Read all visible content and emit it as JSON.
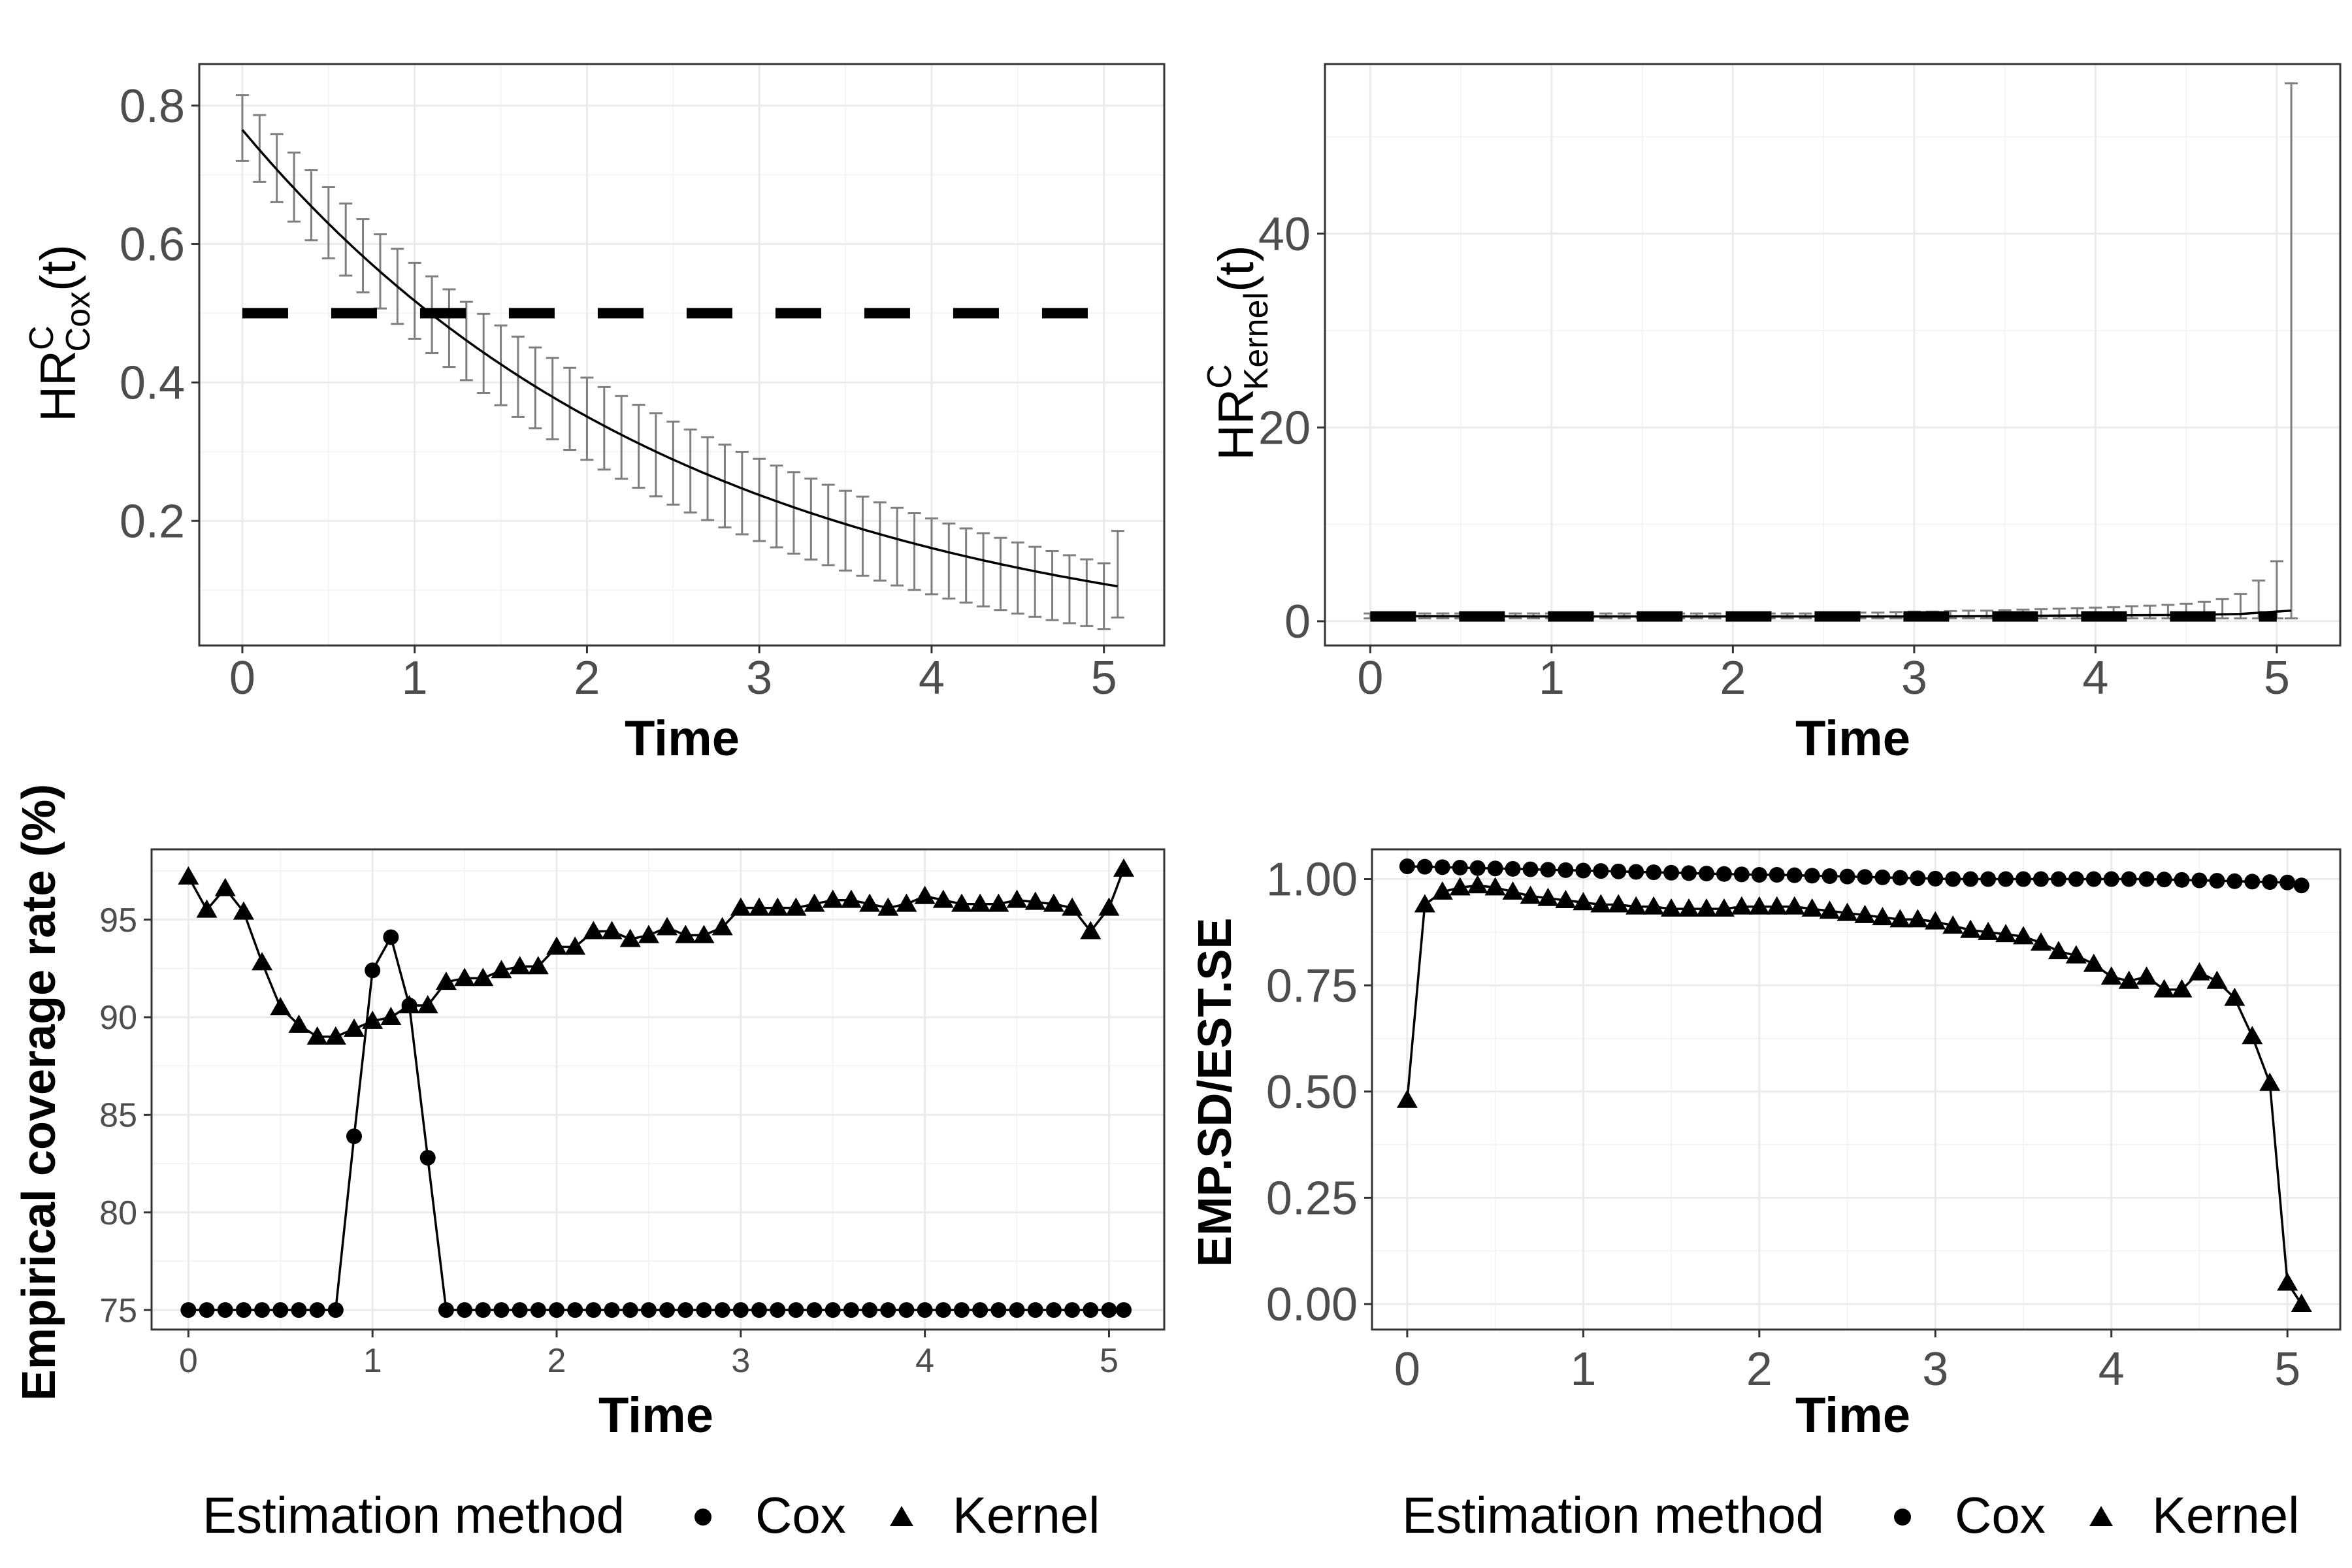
{
  "colors": {
    "grid_major": "#ebebeb",
    "grid_minor": "#f4f4f4",
    "border": "#333333",
    "tick_text": "#4d4d4d",
    "errorbar": "#7f7f7f",
    "line": "#000000"
  },
  "chart_data": [
    {
      "id": "hr_cox",
      "type": "line",
      "ylabel": {
        "base": "HR",
        "sup": "C",
        "sub": "Cox",
        "suffix": "(t)"
      },
      "xlabel": "Time",
      "xlim": [
        -0.25,
        5.35
      ],
      "ylim": [
        0.02,
        0.86
      ],
      "xticks": [
        0,
        1,
        2,
        3,
        4,
        5
      ],
      "yticks": [
        0.2,
        0.4,
        0.6,
        0.8
      ],
      "ytick_labels": [
        "0.2",
        "0.4",
        "0.6",
        "0.8"
      ],
      "reference_line": {
        "value": 0.5,
        "style": "dashed"
      },
      "estimate": {
        "formula": "0.765*exp(-0.39*t)",
        "x_range": [
          0,
          5.08
        ]
      },
      "errorbars": {
        "x_step": 0.1,
        "lower_formula": "est-0.045-0.02*t/5-0.01*sin(pi*t/5)",
        "upper_formula": "est+0.05-0.02*t/5+0.015*sin(pi*t/5)"
      }
    },
    {
      "id": "hr_kernel",
      "type": "line",
      "ylabel": {
        "base": "HR",
        "sup": "C",
        "sub": "Kernel",
        "suffix": "(t)"
      },
      "xlabel": "Time",
      "xlim": [
        -0.25,
        5.35
      ],
      "ylim": [
        -2.5,
        57.5
      ],
      "xticks": [
        0,
        1,
        2,
        3,
        4,
        5
      ],
      "yticks": [
        0,
        20,
        40
      ],
      "ytick_labels": [
        "0",
        "20",
        "40"
      ],
      "reference_line": {
        "value": 0.5,
        "style": "dashed"
      },
      "estimate": {
        "x": [
          0,
          1,
          2,
          3,
          3.5,
          4,
          4.5,
          4.8,
          5.0,
          5.08
        ],
        "y": [
          0.55,
          0.5,
          0.5,
          0.5,
          0.55,
          0.6,
          0.65,
          0.75,
          1.0,
          1.1
        ]
      },
      "errorbars": {
        "x": [
          0.0,
          0.1,
          0.2,
          0.3,
          0.4,
          0.5,
          0.6,
          0.7,
          0.8,
          0.9,
          1.0,
          1.1,
          1.2,
          1.3,
          1.4,
          1.5,
          1.6,
          1.7,
          1.8,
          1.9,
          2.0,
          2.1,
          2.2,
          2.3,
          2.4,
          2.5,
          2.6,
          2.7,
          2.8,
          2.9,
          3.0,
          3.1,
          3.2,
          3.3,
          3.4,
          3.5,
          3.6,
          3.7,
          3.8,
          3.9,
          4.0,
          4.1,
          4.2,
          4.3,
          4.4,
          4.5,
          4.6,
          4.7,
          4.8,
          4.9,
          5.0,
          5.08
        ],
        "upper": [
          0.8,
          0.8,
          0.8,
          0.8,
          0.8,
          0.8,
          0.8,
          0.8,
          0.8,
          0.8,
          0.8,
          0.8,
          0.8,
          0.8,
          0.8,
          0.8,
          0.8,
          0.8,
          0.8,
          0.8,
          0.8,
          0.8,
          0.8,
          0.8,
          0.8,
          0.85,
          0.85,
          0.9,
          0.9,
          0.95,
          1.0,
          1.0,
          1.05,
          1.1,
          1.1,
          1.15,
          1.2,
          1.25,
          1.3,
          1.35,
          1.4,
          1.45,
          1.55,
          1.6,
          1.7,
          1.8,
          2.0,
          2.3,
          2.8,
          4.2,
          6.2,
          55.5
        ],
        "lower": [
          0.3,
          0.3,
          0.3,
          0.3,
          0.3,
          0.3,
          0.3,
          0.3,
          0.3,
          0.3,
          0.3,
          0.3,
          0.3,
          0.3,
          0.3,
          0.3,
          0.3,
          0.3,
          0.3,
          0.3,
          0.3,
          0.3,
          0.3,
          0.3,
          0.3,
          0.3,
          0.3,
          0.3,
          0.3,
          0.3,
          0.3,
          0.3,
          0.3,
          0.3,
          0.3,
          0.3,
          0.3,
          0.3,
          0.3,
          0.3,
          0.3,
          0.3,
          0.3,
          0.3,
          0.3,
          0.3,
          0.3,
          0.3,
          0.3,
          0.3,
          0.3,
          0.3
        ]
      }
    },
    {
      "id": "coverage",
      "type": "line",
      "ylabel": "Empirical coverage rate (%)",
      "xlabel": "Time",
      "xlim": [
        -0.2,
        5.3
      ],
      "ylim": [
        74.0,
        98.6
      ],
      "xticks": [
        0,
        1,
        2,
        3,
        4,
        5
      ],
      "yticks": [
        75,
        80,
        85,
        90,
        95
      ],
      "ytick_labels": [
        "75",
        "80",
        "85",
        "90",
        "95"
      ],
      "legend": {
        "title": "Estimation method",
        "entries": [
          "Cox",
          "Kernel"
        ],
        "position": "bottom"
      },
      "series": [
        {
          "name": "Cox",
          "marker": "circle",
          "x": [
            0.0,
            0.1,
            0.2,
            0.3,
            0.4,
            0.5,
            0.6,
            0.7,
            0.8,
            0.9,
            1.0,
            1.1,
            1.2,
            1.3,
            1.4,
            1.5,
            1.6,
            1.7,
            1.8,
            1.9,
            2.0,
            2.1,
            2.2,
            2.3,
            2.4,
            2.5,
            2.6,
            2.7,
            2.8,
            2.9,
            3.0,
            3.1,
            3.2,
            3.3,
            3.4,
            3.5,
            3.6,
            3.7,
            3.8,
            3.9,
            4.0,
            4.1,
            4.2,
            4.3,
            4.4,
            4.5,
            4.6,
            4.7,
            4.8,
            4.9,
            5.0,
            5.08
          ],
          "y": [
            75.0,
            75.0,
            75.0,
            75.0,
            75.0,
            75.0,
            75.0,
            75.0,
            75.0,
            83.9,
            92.4,
            94.1,
            90.6,
            82.8,
            75.0,
            75.0,
            75.0,
            75.0,
            75.0,
            75.0,
            75.0,
            75.0,
            75.0,
            75.0,
            75.0,
            75.0,
            75.0,
            75.0,
            75.0,
            75.0,
            75.0,
            75.0,
            75.0,
            75.0,
            75.0,
            75.0,
            75.0,
            75.0,
            75.0,
            75.0,
            75.0,
            75.0,
            75.0,
            75.0,
            75.0,
            75.0,
            75.0,
            75.0,
            75.0,
            75.0,
            75.0,
            75.0
          ]
        },
        {
          "name": "Kernel",
          "marker": "triangle",
          "x": [
            0.0,
            0.1,
            0.2,
            0.3,
            0.4,
            0.5,
            0.6,
            0.7,
            0.8,
            0.9,
            1.0,
            1.1,
            1.2,
            1.3,
            1.4,
            1.5,
            1.6,
            1.7,
            1.8,
            1.9,
            2.0,
            2.1,
            2.2,
            2.3,
            2.4,
            2.5,
            2.6,
            2.7,
            2.8,
            2.9,
            3.0,
            3.1,
            3.2,
            3.3,
            3.4,
            3.5,
            3.6,
            3.7,
            3.8,
            3.9,
            4.0,
            4.1,
            4.2,
            4.3,
            4.4,
            4.5,
            4.6,
            4.7,
            4.8,
            4.9,
            5.0,
            5.08
          ],
          "y": [
            97.2,
            95.5,
            96.6,
            95.4,
            92.8,
            90.5,
            89.6,
            89.0,
            89.0,
            89.4,
            89.8,
            90.0,
            90.6,
            90.6,
            91.8,
            92.0,
            92.0,
            92.4,
            92.6,
            92.6,
            93.6,
            93.6,
            94.4,
            94.4,
            94.0,
            94.2,
            94.6,
            94.2,
            94.2,
            94.6,
            95.6,
            95.6,
            95.6,
            95.6,
            95.8,
            96.0,
            96.0,
            95.8,
            95.6,
            95.8,
            96.2,
            96.0,
            95.8,
            95.8,
            95.8,
            96.0,
            95.9,
            95.8,
            95.6,
            94.4,
            95.6,
            97.6
          ]
        }
      ]
    },
    {
      "id": "sd_ratio",
      "type": "line",
      "ylabel": "EMP.SD/EST.SE",
      "xlabel": "Time",
      "xlim": [
        -0.2,
        5.3
      ],
      "ylim": [
        -0.06,
        1.07
      ],
      "xticks": [
        0,
        1,
        2,
        3,
        4,
        5
      ],
      "yticks": [
        0.0,
        0.25,
        0.5,
        0.75,
        1.0
      ],
      "ytick_labels": [
        "0.00",
        "0.25",
        "0.50",
        "0.75",
        "1.00"
      ],
      "legend": {
        "title": "Estimation method",
        "entries": [
          "Cox",
          "Kernel"
        ],
        "position": "bottom"
      },
      "series": [
        {
          "name": "Cox",
          "marker": "circle",
          "x": [
            0.0,
            0.1,
            0.2,
            0.3,
            0.4,
            0.5,
            0.6,
            0.7,
            0.8,
            0.9,
            1.0,
            1.1,
            1.2,
            1.3,
            1.4,
            1.5,
            1.6,
            1.7,
            1.8,
            1.9,
            2.0,
            2.1,
            2.2,
            2.3,
            2.4,
            2.5,
            2.6,
            2.7,
            2.8,
            2.9,
            3.0,
            3.1,
            3.2,
            3.3,
            3.4,
            3.5,
            3.6,
            3.7,
            3.8,
            3.9,
            4.0,
            4.1,
            4.2,
            4.3,
            4.4,
            4.5,
            4.6,
            4.7,
            4.8,
            4.9,
            5.0,
            5.08
          ],
          "y": [
            1.03,
            1.029,
            1.028,
            1.027,
            1.026,
            1.025,
            1.024,
            1.023,
            1.022,
            1.021,
            1.02,
            1.019,
            1.018,
            1.017,
            1.016,
            1.015,
            1.014,
            1.013,
            1.012,
            1.011,
            1.01,
            1.01,
            1.009,
            1.008,
            1.007,
            1.006,
            1.005,
            1.004,
            1.003,
            1.002,
            1.001,
            1.0,
            1.0,
            1.0,
            1.0,
            1.0,
            1.0,
            1.0,
            1.0,
            1.0,
            1.0,
            1.0,
            1.0,
            0.999,
            0.998,
            0.997,
            0.996,
            0.995,
            0.994,
            0.993,
            0.992,
            0.985
          ]
        },
        {
          "name": "Kernel",
          "marker": "triangle",
          "x": [
            0.0,
            0.1,
            0.2,
            0.3,
            0.4,
            0.5,
            0.6,
            0.7,
            0.8,
            0.9,
            1.0,
            1.1,
            1.2,
            1.3,
            1.4,
            1.5,
            1.6,
            1.7,
            1.8,
            1.9,
            2.0,
            2.1,
            2.2,
            2.3,
            2.4,
            2.5,
            2.6,
            2.7,
            2.8,
            2.9,
            3.0,
            3.1,
            3.2,
            3.3,
            3.4,
            3.5,
            3.6,
            3.7,
            3.8,
            3.9,
            4.0,
            4.1,
            4.2,
            4.3,
            4.4,
            4.5,
            4.6,
            4.7,
            4.8,
            4.9,
            5.0,
            5.08
          ],
          "y": [
            0.48,
            0.94,
            0.97,
            0.98,
            0.985,
            0.98,
            0.97,
            0.96,
            0.955,
            0.95,
            0.945,
            0.94,
            0.94,
            0.935,
            0.935,
            0.93,
            0.93,
            0.93,
            0.93,
            0.935,
            0.935,
            0.935,
            0.935,
            0.93,
            0.925,
            0.92,
            0.915,
            0.91,
            0.905,
            0.905,
            0.9,
            0.89,
            0.88,
            0.875,
            0.87,
            0.865,
            0.85,
            0.83,
            0.82,
            0.8,
            0.77,
            0.76,
            0.77,
            0.74,
            0.74,
            0.78,
            0.76,
            0.72,
            0.63,
            0.52,
            0.05,
            0.0
          ]
        }
      ]
    }
  ]
}
